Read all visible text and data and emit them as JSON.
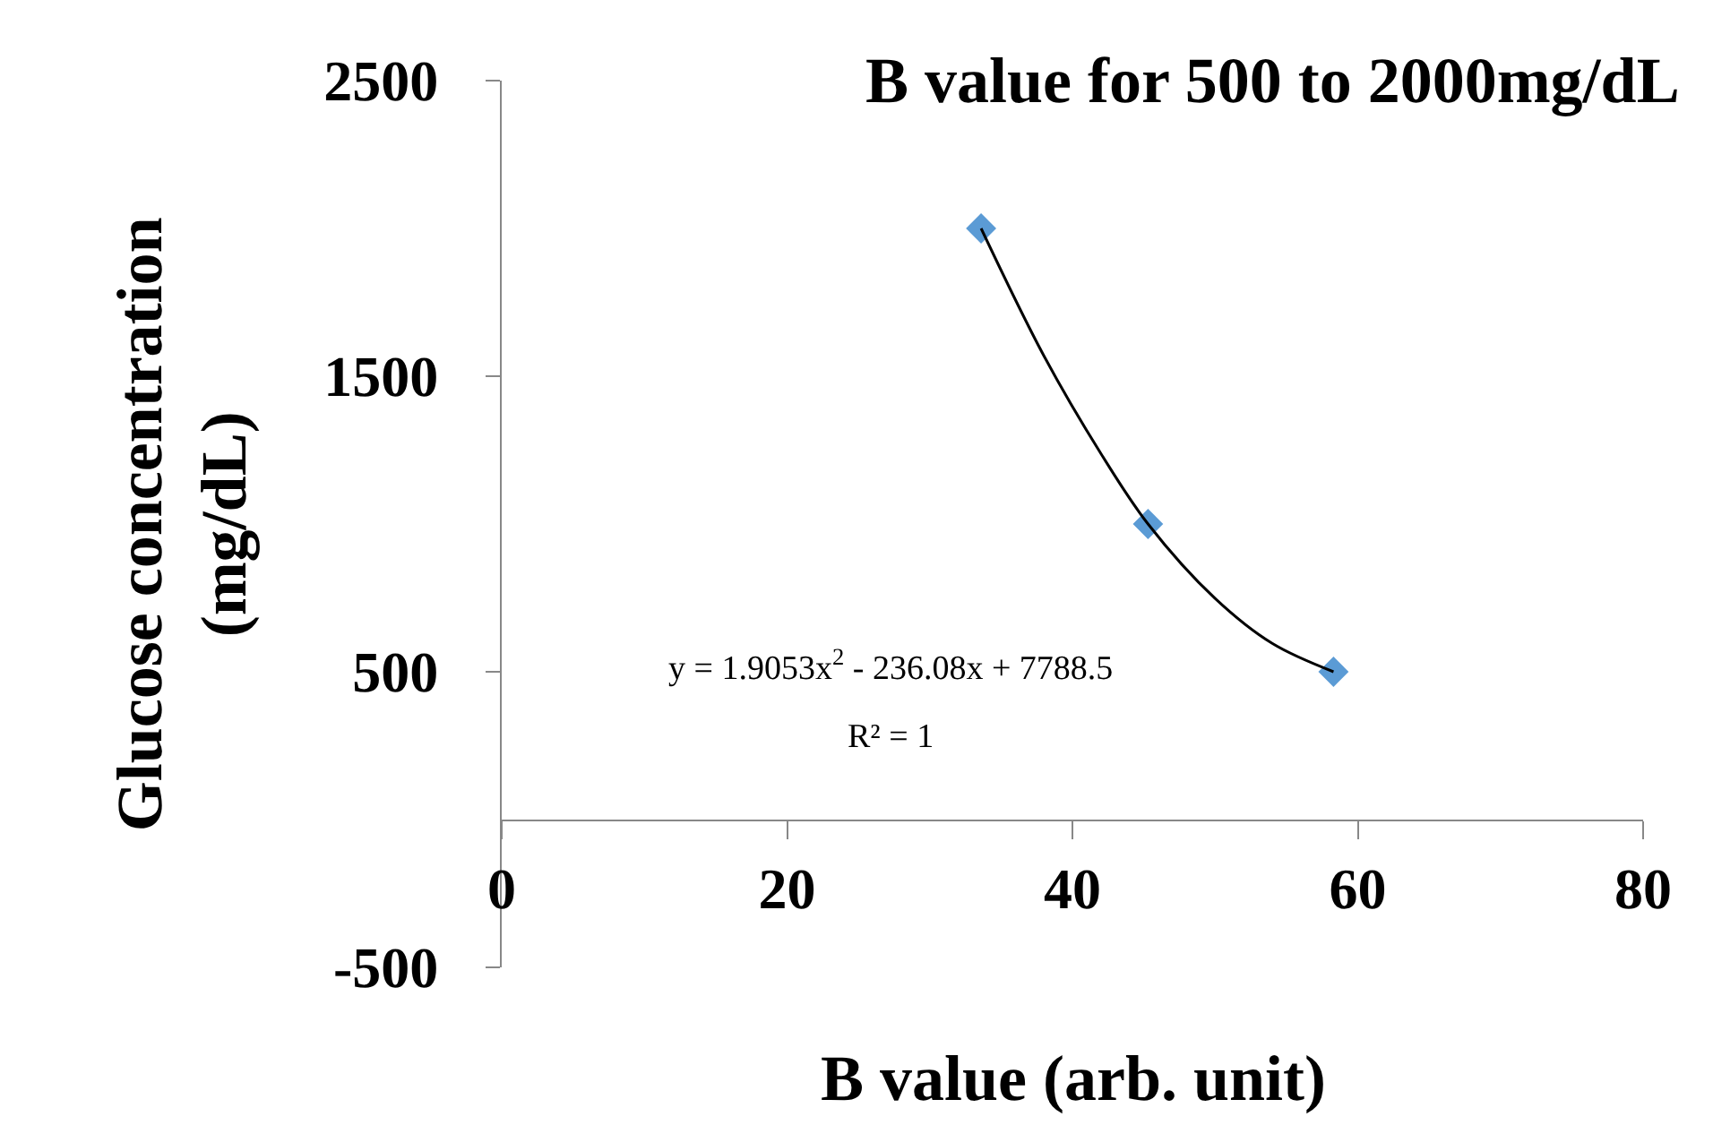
{
  "chart_data": {
    "type": "scatter",
    "title": "B value for 500 to 2000mg/dL",
    "xlabel": "B value (arb. unit)",
    "ylabel": "Glucose concentration (mg/dL)",
    "marker": "diamond",
    "legend": false,
    "xlim": [
      0,
      80
    ],
    "xticks": [
      0,
      20,
      40,
      60,
      80
    ],
    "ylim": [
      -500,
      2500
    ],
    "yticks": [
      -500,
      500,
      1500,
      2500
    ],
    "series": [
      {
        "color": "#5b9bd5",
        "x": [
          33.6,
          45.3,
          58.3
        ],
        "values": [
          2000,
          1000,
          500
        ]
      },
      {
        "type": "line",
        "marker": "none",
        "color": "#000000",
        "x": [
          33.6,
          38,
          42,
          45.3,
          50,
          54,
          58.3
        ],
        "values": [
          2000,
          1569,
          1238,
          1000,
          748,
          596,
          500
        ]
      }
    ],
    "annotations": [
      "y = 1.9053x$^{2}$ - 236.08x + 7788.5",
      "R² = 1"
    ]
  }
}
